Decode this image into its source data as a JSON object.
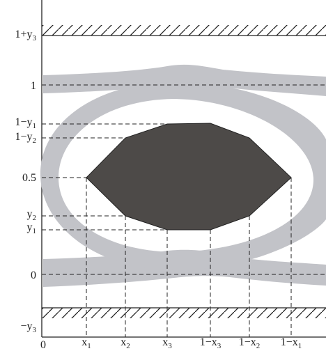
{
  "colors": {
    "eye_band": "#c2c3c8",
    "mask_fill": "#4d4a48",
    "line": "#222222",
    "background": "#ffffff"
  },
  "y_labels": {
    "top_limit": {
      "base": "1+y",
      "sub": "3"
    },
    "one": {
      "base": "1",
      "sub": ""
    },
    "one_minus_y1": {
      "base": "1−y",
      "sub": "1"
    },
    "one_minus_y2": {
      "base": "1−y",
      "sub": "2"
    },
    "half": {
      "base": "0.5",
      "sub": ""
    },
    "y2": {
      "base": "y",
      "sub": "2"
    },
    "y1": {
      "base": "y",
      "sub": "1"
    },
    "zero": {
      "base": "0",
      "sub": ""
    },
    "bottom_limit": {
      "base": "−y",
      "sub": "3"
    }
  },
  "x_labels": {
    "origin": {
      "base": "0",
      "sub": ""
    },
    "x1": {
      "base": "x",
      "sub": "1"
    },
    "x2": {
      "base": "x",
      "sub": "2"
    },
    "x3": {
      "base": "x",
      "sub": "3"
    },
    "one_minus_x3": {
      "base": "1−x",
      "sub": "3"
    },
    "one_minus_x2": {
      "base": "1−x",
      "sub": "2"
    },
    "one_minus_x1": {
      "base": "1−x",
      "sub": "1"
    }
  }
}
